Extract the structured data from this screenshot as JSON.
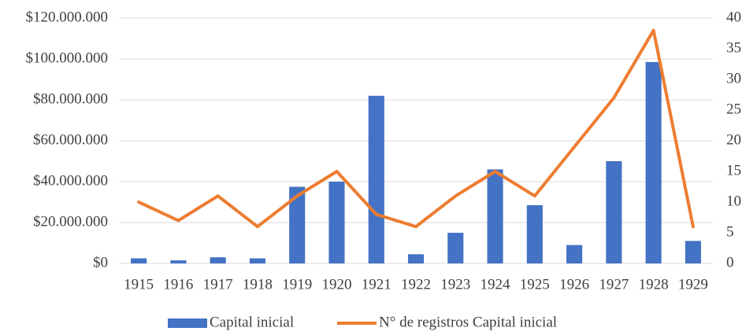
{
  "chart_data": {
    "type": "bar_line",
    "categories": [
      "1915",
      "1916",
      "1917",
      "1918",
      "1919",
      "1920",
      "1921",
      "1922",
      "1923",
      "1924",
      "1925",
      "1926",
      "1927",
      "1928",
      "1929"
    ],
    "series": [
      {
        "name": "Capital inicial",
        "type": "bar",
        "color": "#4472c4",
        "values": [
          2500000,
          1500000,
          3000000,
          2500000,
          37500000,
          40000000,
          82000000,
          4500000,
          15000000,
          46000000,
          28500000,
          9000000,
          50000000,
          98500000,
          11000000
        ]
      },
      {
        "name": "N° de registros Capital inicial",
        "type": "line",
        "color": "#ed7d31",
        "axis": "y2",
        "values": [
          10,
          7,
          11,
          6,
          11,
          15,
          8,
          6,
          11,
          15,
          11,
          19,
          27,
          38,
          6
        ]
      }
    ],
    "ylim": [
      0,
      120000000
    ],
    "yticks": [
      {
        "value": 0,
        "label": "$0"
      },
      {
        "value": 20000000,
        "label": "$20.000.000"
      },
      {
        "value": 40000000,
        "label": "$40.000.000"
      },
      {
        "value": 60000000,
        "label": "$60.000.000"
      },
      {
        "value": 80000000,
        "label": "$80.000.000"
      },
      {
        "value": 100000000,
        "label": "$100.000.000"
      },
      {
        "value": 120000000,
        "label": "$120.000.000"
      }
    ],
    "y2lim": [
      0,
      40
    ],
    "y2ticks": [
      0,
      5,
      10,
      15,
      20,
      25,
      30,
      35,
      40
    ],
    "grid": true,
    "legend": "bottom"
  }
}
